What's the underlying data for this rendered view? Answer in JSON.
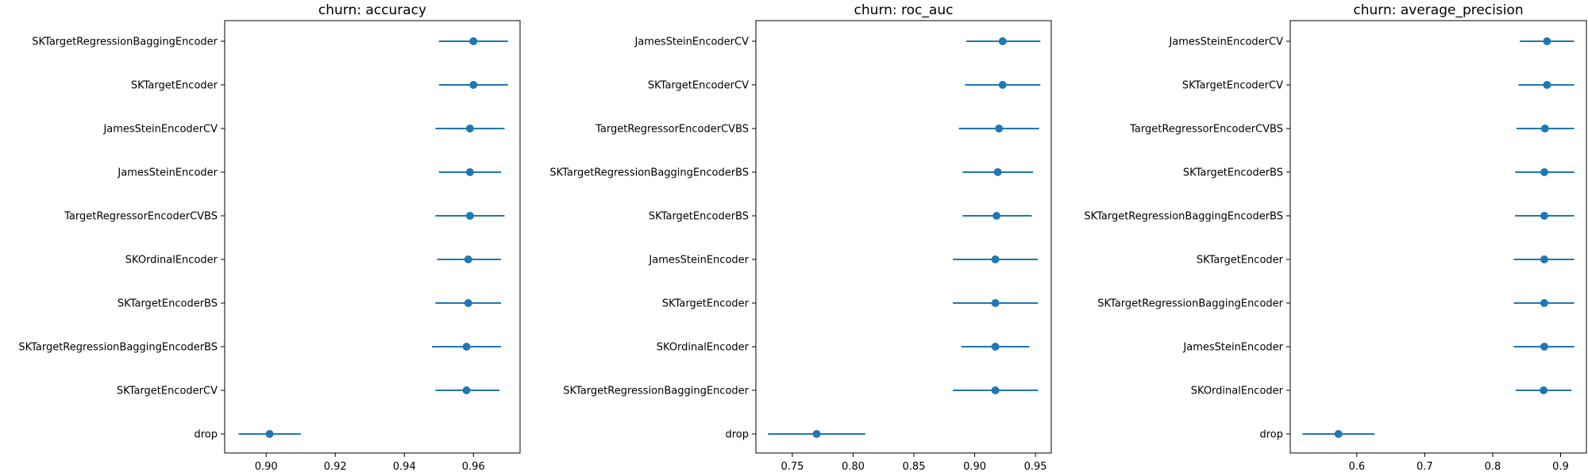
{
  "chart_data": [
    {
      "type": "errorbar",
      "title": "churn: accuracy",
      "color": "#1f77b4",
      "xlim": [
        0.888,
        0.9735
      ],
      "xticks": [
        0.9,
        0.92,
        0.94,
        0.96
      ],
      "xtick_labels": [
        "0.90",
        "0.92",
        "0.94",
        "0.96"
      ],
      "series": [
        {
          "label": "SKTargetRegressionBaggingEncoder",
          "mean": 0.96,
          "lo": 0.95,
          "hi": 0.97
        },
        {
          "label": "SKTargetEncoder",
          "mean": 0.96,
          "lo": 0.95,
          "hi": 0.97
        },
        {
          "label": "JamesSteinEncoderCV",
          "mean": 0.959,
          "lo": 0.949,
          "hi": 0.969
        },
        {
          "label": "JamesSteinEncoder",
          "mean": 0.959,
          "lo": 0.95,
          "hi": 0.968
        },
        {
          "label": "TargetRegressorEncoderCVBS",
          "mean": 0.959,
          "lo": 0.949,
          "hi": 0.969
        },
        {
          "label": "SKOrdinalEncoder",
          "mean": 0.9585,
          "lo": 0.9495,
          "hi": 0.968
        },
        {
          "label": "SKTargetEncoderBS",
          "mean": 0.9585,
          "lo": 0.949,
          "hi": 0.968
        },
        {
          "label": "SKTargetRegressionBaggingEncoderBS",
          "mean": 0.958,
          "lo": 0.948,
          "hi": 0.968
        },
        {
          "label": "SKTargetEncoderCV",
          "mean": 0.958,
          "lo": 0.949,
          "hi": 0.9675
        },
        {
          "label": "drop",
          "mean": 0.901,
          "lo": 0.892,
          "hi": 0.91
        }
      ]
    },
    {
      "type": "errorbar",
      "title": "churn: roc_auc",
      "color": "#1f77b4",
      "xlim": [
        0.72,
        0.963
      ],
      "xticks": [
        0.75,
        0.8,
        0.85,
        0.9,
        0.95
      ],
      "xtick_labels": [
        "0.75",
        "0.80",
        "0.85",
        "0.90",
        "0.95"
      ],
      "series": [
        {
          "label": "JamesSteinEncoderCV",
          "mean": 0.923,
          "lo": 0.893,
          "hi": 0.954
        },
        {
          "label": "SKTargetEncoderCV",
          "mean": 0.923,
          "lo": 0.892,
          "hi": 0.954
        },
        {
          "label": "TargetRegressorEncoderCVBS",
          "mean": 0.92,
          "lo": 0.887,
          "hi": 0.953
        },
        {
          "label": "SKTargetRegressionBaggingEncoderBS",
          "mean": 0.919,
          "lo": 0.89,
          "hi": 0.948
        },
        {
          "label": "SKTargetEncoderBS",
          "mean": 0.918,
          "lo": 0.89,
          "hi": 0.947
        },
        {
          "label": "JamesSteinEncoder",
          "mean": 0.917,
          "lo": 0.882,
          "hi": 0.952
        },
        {
          "label": "SKTargetEncoder",
          "mean": 0.917,
          "lo": 0.882,
          "hi": 0.952
        },
        {
          "label": "SKOrdinalEncoder",
          "mean": 0.917,
          "lo": 0.889,
          "hi": 0.945
        },
        {
          "label": "SKTargetRegressionBaggingEncoder",
          "mean": 0.917,
          "lo": 0.882,
          "hi": 0.952
        },
        {
          "label": "drop",
          "mean": 0.77,
          "lo": 0.73,
          "hi": 0.81
        }
      ]
    },
    {
      "type": "errorbar",
      "title": "churn: average_precision",
      "color": "#1f77b4",
      "xlim": [
        0.502,
        0.938
      ],
      "xticks": [
        0.6,
        0.7,
        0.8,
        0.9
      ],
      "xtick_labels": [
        "0.6",
        "0.7",
        "0.8",
        "0.9"
      ],
      "series": [
        {
          "label": "JamesSteinEncoderCV",
          "mean": 0.88,
          "lo": 0.84,
          "hi": 0.92
        },
        {
          "label": "SKTargetEncoderCV",
          "mean": 0.88,
          "lo": 0.838,
          "hi": 0.92
        },
        {
          "label": "TargetRegressorEncoderCVBS",
          "mean": 0.877,
          "lo": 0.835,
          "hi": 0.92
        },
        {
          "label": "SKTargetEncoderBS",
          "mean": 0.876,
          "lo": 0.833,
          "hi": 0.92
        },
        {
          "label": "SKTargetRegressionBaggingEncoderBS",
          "mean": 0.876,
          "lo": 0.833,
          "hi": 0.92
        },
        {
          "label": "SKTargetEncoder",
          "mean": 0.876,
          "lo": 0.831,
          "hi": 0.92
        },
        {
          "label": "SKTargetRegressionBaggingEncoder",
          "mean": 0.876,
          "lo": 0.831,
          "hi": 0.92
        },
        {
          "label": "JamesSteinEncoder",
          "mean": 0.876,
          "lo": 0.831,
          "hi": 0.92
        },
        {
          "label": "SKOrdinalEncoder",
          "mean": 0.875,
          "lo": 0.834,
          "hi": 0.916
        },
        {
          "label": "drop",
          "mean": 0.573,
          "lo": 0.52,
          "hi": 0.626
        }
      ]
    }
  ]
}
